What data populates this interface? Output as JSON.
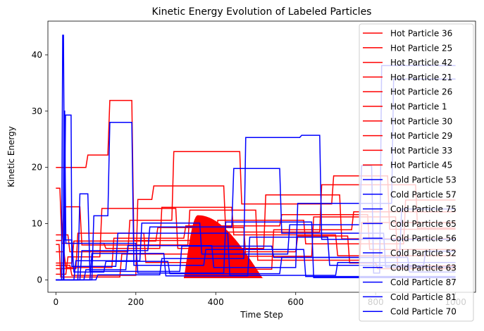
{
  "chart_data": {
    "type": "line",
    "title": "Kinetic Energy Evolution of Labeled Particles",
    "xlabel": "Time Step",
    "ylabel": "Kinetic Energy",
    "xlim": [
      -20,
      1050
    ],
    "ylim": [
      -2.2,
      46
    ],
    "xticks": [
      0,
      200,
      400,
      600,
      800,
      1000
    ],
    "xtick_labels": [
      "0",
      "200",
      "400",
      "600",
      "800",
      "1000"
    ],
    "yticks": [
      0,
      10,
      20,
      30,
      40
    ],
    "ytick_labels": [
      "0",
      "10",
      "20",
      "30",
      "40"
    ],
    "grid": false,
    "legend_position": "right",
    "colors": {
      "hot": "#ff0000",
      "cold": "#0000ff"
    },
    "series": [
      {
        "name": "Hot Particle 36",
        "color": "#ff0000",
        "x": [
          0,
          75,
          80,
          130,
          135,
          190,
          195,
          380,
          385,
          600,
          605,
          730,
          735,
          800,
          805,
          1000
        ],
        "y": [
          20,
          20,
          22.2,
          22.2,
          31.9,
          31.9,
          7,
          7,
          5,
          5,
          7.8,
          7.8,
          3,
          3,
          2,
          2
        ]
      },
      {
        "name": "Hot Particle 25",
        "color": "#ff0000",
        "x": [
          0,
          10,
          15,
          120,
          125,
          260,
          265,
          440,
          445,
          700,
          705,
          1000
        ],
        "y": [
          16.3,
          16.3,
          6.5,
          6.5,
          5.6,
          5.6,
          12.9,
          12.9,
          8,
          8,
          4.3,
          4.3
        ]
      },
      {
        "name": "Hot Particle 42",
        "color": "#ff0000",
        "x": [
          0,
          30,
          35,
          180,
          185,
          290,
          295,
          460,
          465,
          690,
          695,
          830,
          835,
          1000
        ],
        "y": [
          8,
          8,
          5,
          5,
          10.6,
          10.6,
          22.8,
          22.8,
          13.5,
          13.5,
          18.5,
          18.5,
          9,
          9
        ]
      },
      {
        "name": "Hot Particle 21",
        "color": "#ff0000",
        "x": [
          0,
          40,
          45,
          250,
          255,
          470,
          475,
          640,
          645,
          850,
          855,
          1000
        ],
        "y": [
          3,
          3,
          6.9,
          6.9,
          9.3,
          9.3,
          4.2,
          4.2,
          11.2,
          11.2,
          2.5,
          2.5
        ]
      },
      {
        "name": "Hot Particle 26",
        "color": "#ff0000",
        "x": [
          0,
          15,
          20,
          60,
          65,
          330,
          335,
          500,
          505,
          760,
          765,
          1000
        ],
        "y": [
          7,
          7,
          13,
          13,
          6.2,
          6.2,
          12.4,
          12.4,
          3.5,
          3.5,
          10.2,
          10.2
        ]
      },
      {
        "name": "Hot Particle 1",
        "color": "#ff0000",
        "x": [
          0,
          20,
          25,
          140,
          145,
          320,
          325,
          560,
          565,
          780,
          785,
          1000
        ],
        "y": [
          5,
          5,
          2.2,
          2.2,
          7.4,
          7.4,
          9.6,
          9.6,
          11.6,
          11.6,
          5.4,
          5.4
        ]
      },
      {
        "name": "Hot Particle 30",
        "color": "#ff0000",
        "x": [
          0,
          50,
          55,
          220,
          225,
          400,
          405,
          620,
          625,
          870,
          875,
          1000
        ],
        "y": [
          2,
          2,
          8.3,
          8.3,
          3.1,
          3.1,
          10.6,
          10.6,
          6.4,
          6.4,
          14.2,
          14.2
        ]
      },
      {
        "name": "Hot Particle 29",
        "color": "#ff0000",
        "x": [
          0,
          25,
          30,
          110,
          115,
          300,
          305,
          520,
          525,
          710,
          715,
          1000
        ],
        "y": [
          1,
          1,
          4.1,
          4.1,
          12.7,
          12.7,
          5.6,
          5.6,
          15.1,
          15.1,
          7.3,
          7.3
        ]
      },
      {
        "name": "Hot Particle 33",
        "color": "#ff0000",
        "x": [
          0,
          35,
          40,
          200,
          205,
          240,
          245,
          420,
          425,
          660,
          665,
          900,
          905,
          1000
        ],
        "y": [
          2.6,
          2.6,
          0.8,
          0.8,
          14.3,
          14.3,
          16.7,
          16.7,
          8.5,
          8.5,
          16.9,
          16.9,
          9.2,
          9.2
        ]
      },
      {
        "name": "Hot Particle 45",
        "color": "#ff0000",
        "x": [
          0,
          8,
          12,
          160,
          165,
          350,
          355,
          540,
          545,
          740,
          745,
          1000
        ],
        "y": [
          6.3,
          6.3,
          0.5,
          0.5,
          4.6,
          4.6,
          1.9,
          1.9,
          8.9,
          8.9,
          12.1,
          12.1
        ]
      },
      {
        "name": "Cold Particle 53",
        "color": "#0000ff",
        "x": [
          0,
          14,
          17,
          19,
          22,
          40,
          45,
          120,
          125,
          280,
          285,
          560,
          565,
          880,
          885,
          1000
        ],
        "y": [
          0,
          0,
          43.5,
          43.5,
          7.1,
          7.1,
          1.4,
          1.4,
          3.3,
          3.3,
          1.1,
          1.1,
          4,
          4,
          1.4,
          1.4
        ]
      },
      {
        "name": "Cold Particle 57",
        "color": "#0000ff",
        "x": [
          0,
          18,
          20,
          22,
          25,
          200,
          205,
          420,
          425,
          640,
          645,
          1000
        ],
        "y": [
          0,
          0,
          30,
          30,
          6.5,
          6.5,
          1.2,
          1.2,
          10.3,
          10.3,
          0.4,
          0.4
        ]
      },
      {
        "name": "Cold Particle 75",
        "color": "#0000ff",
        "x": [
          0,
          20,
          24,
          38,
          40,
          150,
          155,
          430,
          435,
          700,
          705,
          1000
        ],
        "y": [
          0,
          0,
          29.3,
          29.3,
          2.4,
          2.4,
          8.3,
          8.3,
          0.8,
          0.8,
          3.1,
          3.1
        ]
      },
      {
        "name": "Cold Particle 65",
        "color": "#0000ff",
        "x": [
          0,
          55,
          60,
          80,
          85,
          310,
          315,
          540,
          545,
          860,
          865,
          1000
        ],
        "y": [
          0,
          0,
          15.3,
          15.3,
          1.5,
          1.5,
          6,
          6,
          4,
          4,
          12.6,
          12.6
        ]
      },
      {
        "name": "Cold Particle 56",
        "color": "#0000ff",
        "x": [
          0,
          90,
          95,
          130,
          135,
          190,
          195,
          370,
          375,
          620,
          625,
          1000
        ],
        "y": [
          0,
          0,
          11.4,
          11.4,
          28,
          28,
          2.6,
          2.6,
          5.4,
          5.4,
          0.6,
          0.6
        ]
      },
      {
        "name": "Cold Particle 52",
        "color": "#0000ff",
        "x": [
          0,
          100,
          105,
          260,
          265,
          470,
          475,
          610,
          615,
          660,
          665,
          1000
        ],
        "y": [
          0,
          0,
          0.9,
          0.9,
          3.8,
          3.8,
          25.3,
          25.3,
          25.7,
          25.7,
          7.2,
          7.2
        ]
      },
      {
        "name": "Cold Particle 63",
        "color": "#0000ff",
        "x": [
          0,
          60,
          65,
          230,
          235,
          440,
          445,
          560,
          565,
          820,
          825,
          1000
        ],
        "y": [
          0,
          0,
          5.2,
          5.2,
          9.4,
          9.4,
          19.8,
          19.8,
          8.3,
          8.3,
          2.3,
          2.3
        ]
      },
      {
        "name": "Cold Particle 87",
        "color": "#0000ff",
        "x": [
          0,
          45,
          50,
          210,
          215,
          360,
          365,
          580,
          585,
          760,
          765,
          790,
          795,
          810,
          815,
          1000
        ],
        "y": [
          0,
          0,
          3.4,
          3.4,
          10.1,
          10.1,
          4.6,
          4.6,
          9.8,
          9.8,
          20.3,
          20.3,
          1.2,
          1.2,
          38.1,
          38.1
        ]
      },
      {
        "name": "Cold Particle 81",
        "color": "#0000ff",
        "x": [
          0,
          70,
          75,
          175,
          180,
          390,
          395,
          600,
          605,
          840,
          845,
          1000
        ],
        "y": [
          0,
          0,
          1.8,
          1.8,
          6.1,
          6.1,
          2.2,
          2.2,
          13.6,
          13.6,
          35.7,
          35.7
        ]
      },
      {
        "name": "Cold Particle 70",
        "color": "#0000ff",
        "x": [
          0,
          85,
          90,
          270,
          275,
          480,
          485,
          680,
          685,
          920,
          925,
          1000
        ],
        "y": [
          0,
          0,
          4.7,
          4.7,
          0.7,
          0.7,
          7.6,
          7.6,
          2.6,
          2.6,
          5.1,
          5.1
        ]
      }
    ],
    "filled_region": {
      "color": "#ff0000",
      "x_start": 320,
      "x_end": 520,
      "peak_x": 355,
      "peak_y": 11.5
    }
  }
}
